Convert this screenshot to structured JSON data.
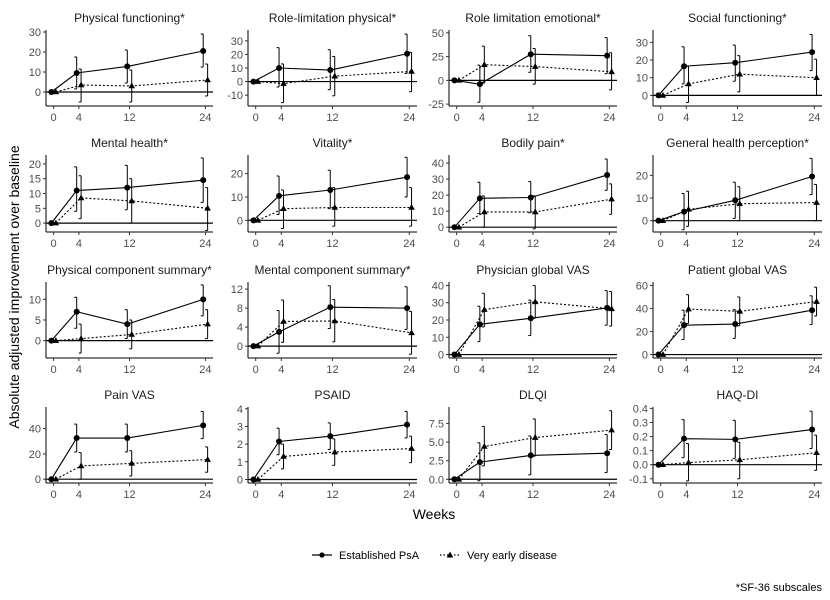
{
  "chart_data": {
    "type": "line",
    "subtype": "faceted-line-with-errorbars",
    "xlabel": "Weeks",
    "ylabel": "Absolute adjusted improvement over baseline",
    "x": [
      0,
      4,
      12,
      24
    ],
    "x_ticks": [
      "0",
      "4",
      "12",
      "24"
    ],
    "legend": {
      "placement": "bottom",
      "entries": [
        {
          "name": "Established PsA",
          "line": "solid",
          "marker": "circle"
        },
        {
          "name": "Very early disease",
          "line": "dotted",
          "marker": "triangle"
        }
      ]
    },
    "footnote": "*SF-36 subscales",
    "grid": false,
    "reference_line": 0,
    "panels": [
      {
        "title": "Physical functioning*",
        "ylim": [
          -7,
          31
        ],
        "yticks": [
          0,
          10,
          20,
          30
        ],
        "series": [
          {
            "name": "Established PsA",
            "values": [
              0,
              9.5,
              12.8,
              20.5
            ],
            "lower": [
              0,
              1.5,
              4.5,
              12.5
            ],
            "upper": [
              0,
              17.5,
              21.0,
              29.0
            ]
          },
          {
            "name": "Very early disease",
            "values": [
              0,
              3.5,
              3.0,
              6.0
            ],
            "lower": [
              0,
              -5.0,
              -5.0,
              -2.0
            ],
            "upper": [
              0,
              11.5,
              11.0,
              14.0
            ]
          }
        ]
      },
      {
        "title": "Role-limitation physical*",
        "ylim": [
          -18,
          38
        ],
        "yticks": [
          -10,
          0,
          10,
          20,
          30
        ],
        "series": [
          {
            "name": "Established PsA",
            "values": [
              0,
              10.0,
              8.5,
              20.5
            ],
            "lower": [
              0,
              -4.0,
              -6.0,
              6.0
            ],
            "upper": [
              0,
              25.0,
              23.5,
              35.0
            ]
          },
          {
            "name": "Very early disease",
            "values": [
              0,
              -1.5,
              4.0,
              7.5
            ],
            "lower": [
              0,
              -15.5,
              -10.5,
              -7.5
            ],
            "upper": [
              0,
              13.0,
              18.5,
              21.5
            ]
          }
        ]
      },
      {
        "title": "Role limitation emotional*",
        "ylim": [
          -27,
          53
        ],
        "yticks": [
          -25,
          0,
          25,
          50
        ],
        "series": [
          {
            "name": "Established PsA",
            "values": [
              0,
              -4.0,
              27.5,
              26.0
            ],
            "lower": [
              0,
              -23.0,
              8.5,
              7.0
            ],
            "upper": [
              0,
              16.0,
              47.0,
              45.0
            ]
          },
          {
            "name": "Very early disease",
            "values": [
              0,
              16.5,
              14.5,
              9.0
            ],
            "lower": [
              0,
              -3.0,
              -4.0,
              -10.0
            ],
            "upper": [
              0,
              36.0,
              33.5,
              29.0
            ]
          }
        ]
      },
      {
        "title": "Social functioning*",
        "ylim": [
          -6,
          37
        ],
        "yticks": [
          0,
          10,
          20,
          30
        ],
        "series": [
          {
            "name": "Established PsA",
            "values": [
              0,
              16.5,
              18.5,
              24.5
            ],
            "lower": [
              0,
              6.5,
              8.0,
              14.0
            ],
            "upper": [
              0,
              27.5,
              28.5,
              34.5
            ]
          },
          {
            "name": "Very early disease",
            "values": [
              0,
              6.5,
              12.0,
              10.0
            ],
            "lower": [
              0,
              -4.0,
              2.0,
              0.0
            ],
            "upper": [
              0,
              16.5,
              22.5,
              20.5
            ]
          }
        ]
      },
      {
        "title": "Mental health*",
        "ylim": [
          -3,
          23
        ],
        "yticks": [
          0,
          5,
          10,
          15,
          20
        ],
        "series": [
          {
            "name": "Established PsA",
            "values": [
              0,
              11.0,
              12.0,
              14.5
            ],
            "lower": [
              0,
              4.0,
              4.5,
              7.0
            ],
            "upper": [
              0,
              19.0,
              19.5,
              22.0
            ]
          },
          {
            "name": "Very early disease",
            "values": [
              0,
              8.5,
              7.5,
              5.0
            ],
            "lower": [
              0,
              1.5,
              0.0,
              -2.5
            ],
            "upper": [
              0,
              16.0,
              15.0,
              12.0
            ]
          }
        ]
      },
      {
        "title": "Vitality*",
        "ylim": [
          -5,
          28
        ],
        "yticks": [
          0,
          10,
          20
        ],
        "series": [
          {
            "name": "Established PsA",
            "values": [
              0,
              10.5,
              13.0,
              18.5
            ],
            "lower": [
              0,
              2.5,
              5.0,
              10.0
            ],
            "upper": [
              0,
              19.0,
              21.5,
              27.0
            ]
          },
          {
            "name": "Very early disease",
            "values": [
              0,
              5.0,
              5.5,
              5.5
            ],
            "lower": [
              0,
              -3.5,
              -2.5,
              -2.5
            ],
            "upper": [
              0,
              13.0,
              14.0,
              14.0
            ]
          }
        ]
      },
      {
        "title": "Bodily pain*",
        "ylim": [
          -3,
          45
        ],
        "yticks": [
          0,
          10,
          20,
          30,
          40
        ],
        "series": [
          {
            "name": "Established PsA",
            "values": [
              0,
              18.0,
              18.5,
              32.5
            ],
            "lower": [
              0,
              8.5,
              9.0,
              23.0
            ],
            "upper": [
              0,
              28.0,
              28.5,
              42.5
            ]
          },
          {
            "name": "Very early disease",
            "values": [
              0,
              9.5,
              9.5,
              17.5
            ],
            "lower": [
              0,
              0.0,
              -1.0,
              8.0
            ],
            "upper": [
              0,
              19.5,
              19.5,
              27.0
            ]
          }
        ]
      },
      {
        "title": "General health perception*",
        "ylim": [
          -5,
          29
        ],
        "yticks": [
          0,
          10,
          20
        ],
        "series": [
          {
            "name": "Established PsA",
            "values": [
              0,
              4.0,
              9.0,
              19.5
            ],
            "lower": [
              0,
              -4.0,
              1.0,
              11.5
            ],
            "upper": [
              0,
              12.0,
              17.0,
              27.5
            ]
          },
          {
            "name": "Very early disease",
            "values": [
              0,
              5.0,
              7.5,
              8.0
            ],
            "lower": [
              0,
              -2.5,
              0.0,
              0.0
            ],
            "upper": [
              0,
              13.0,
              15.0,
              16.0
            ]
          }
        ]
      },
      {
        "title": "Physical component summary*",
        "ylim": [
          -4.2,
          14.2
        ],
        "yticks": [
          0,
          5,
          10
        ],
        "series": [
          {
            "name": "Established PsA",
            "values": [
              0,
              7.0,
              4.0,
              10.0
            ],
            "lower": [
              0,
              3.0,
              0.5,
              6.0
            ],
            "upper": [
              0,
              10.5,
              7.5,
              13.5
            ]
          },
          {
            "name": "Very early disease",
            "values": [
              0,
              0.5,
              1.5,
              4.0
            ],
            "lower": [
              0,
              -3.0,
              -2.0,
              0.5
            ],
            "upper": [
              0,
              4.0,
              5.0,
              7.5
            ]
          }
        ]
      },
      {
        "title": "Mental component summary*",
        "ylim": [
          -2.5,
          13.5
        ],
        "yticks": [
          0,
          4,
          8,
          12
        ],
        "series": [
          {
            "name": "Established PsA",
            "values": [
              0,
              3.0,
              8.2,
              8.0
            ],
            "lower": [
              0,
              -1.5,
              3.7,
              3.5
            ],
            "upper": [
              0,
              7.5,
              12.7,
              12.5
            ]
          },
          {
            "name": "Very early disease",
            "values": [
              0,
              5.2,
              5.3,
              2.8
            ],
            "lower": [
              0,
              0.8,
              0.9,
              -1.7
            ],
            "upper": [
              0,
              9.7,
              9.8,
              7.3
            ]
          }
        ]
      },
      {
        "title": "Physician global VAS",
        "ylim": [
          -2,
          42
        ],
        "yticks": [
          0,
          10,
          20,
          30,
          40
        ],
        "series": [
          {
            "name": "Established PsA",
            "values": [
              0,
              17.5,
              21.0,
              27.0
            ],
            "lower": [
              0,
              7.5,
              11.0,
              17.0
            ],
            "upper": [
              0,
              28.0,
              31.5,
              37.0
            ]
          },
          {
            "name": "Very early disease",
            "values": [
              0,
              26.0,
              30.5,
              26.5
            ],
            "lower": [
              0,
              16.0,
              21.0,
              16.5
            ],
            "upper": [
              0,
              35.5,
              40.0,
              36.5
            ]
          }
        ]
      },
      {
        "title": "Patient global VAS",
        "ylim": [
          -3,
          63
        ],
        "yticks": [
          0,
          20,
          40,
          60
        ],
        "series": [
          {
            "name": "Established PsA",
            "values": [
              0,
              25.5,
              26.5,
              38.5
            ],
            "lower": [
              0,
              13.0,
              14.0,
              26.0
            ],
            "upper": [
              0,
              38.5,
              39.0,
              51.0
            ]
          },
          {
            "name": "Very early disease",
            "values": [
              0,
              39.5,
              37.5,
              46.0
            ],
            "lower": [
              0,
              27.0,
              25.0,
              33.5
            ],
            "upper": [
              0,
              52.0,
              50.0,
              58.5
            ]
          }
        ]
      },
      {
        "title": "Pain VAS",
        "ylim": [
          -3,
          57
        ],
        "yticks": [
          0,
          20,
          40
        ],
        "series": [
          {
            "name": "Established PsA",
            "values": [
              0,
              32.5,
              32.5,
              42.5
            ],
            "lower": [
              0,
              21.5,
              21.5,
              32.0
            ],
            "upper": [
              0,
              43.5,
              43.5,
              53.5
            ]
          },
          {
            "name": "Very early disease",
            "values": [
              0,
              10.5,
              12.5,
              15.5
            ],
            "lower": [
              0,
              0.0,
              2.5,
              5.5
            ],
            "upper": [
              0,
              21.0,
              22.5,
              25.5
            ]
          }
        ]
      },
      {
        "title": "PSAID",
        "ylim": [
          -0.2,
          4.1
        ],
        "yticks": [
          0,
          1,
          2,
          3,
          4
        ],
        "series": [
          {
            "name": "Established PsA",
            "values": [
              0,
              2.15,
              2.45,
              3.1
            ],
            "lower": [
              0,
              1.4,
              1.7,
              2.35
            ],
            "upper": [
              0,
              2.9,
              3.2,
              3.85
            ]
          },
          {
            "name": "Very early disease",
            "values": [
              0,
              1.3,
              1.55,
              1.75
            ],
            "lower": [
              0,
              0.6,
              0.8,
              0.95
            ],
            "upper": [
              0,
              2.0,
              2.3,
              2.45
            ]
          }
        ]
      },
      {
        "title": "DLQI",
        "ylim": [
          -0.5,
          9.7
        ],
        "yticks": [
          0.0,
          2.5,
          5.0,
          7.5
        ],
        "ytick_labels": [
          "0.0",
          "2.5",
          "5.0",
          "7.5"
        ],
        "series": [
          {
            "name": "Established PsA",
            "values": [
              0,
              2.3,
              3.2,
              3.5
            ],
            "lower": [
              0,
              -0.2,
              0.6,
              0.9
            ],
            "upper": [
              0,
              4.9,
              5.8,
              6.0
            ]
          },
          {
            "name": "Very early disease",
            "values": [
              0,
              4.4,
              5.6,
              6.6
            ],
            "lower": [
              0,
              1.8,
              3.1,
              4.0
            ],
            "upper": [
              0,
              7.1,
              8.1,
              9.2
            ]
          }
        ]
      },
      {
        "title": "HAQ-DI",
        "ylim": [
          -0.13,
          0.41
        ],
        "yticks": [
          -0.1,
          0.0,
          0.1,
          0.2,
          0.3,
          0.4
        ],
        "ytick_labels": [
          "-0.1",
          "0.0",
          "0.1",
          "0.2",
          "0.3",
          "0.4"
        ],
        "series": [
          {
            "name": "Established PsA",
            "values": [
              0,
              0.185,
              0.18,
              0.25
            ],
            "lower": [
              0,
              0.05,
              0.045,
              0.115
            ],
            "upper": [
              0,
              0.32,
              0.315,
              0.38
            ]
          },
          {
            "name": "Very early disease",
            "values": [
              0,
              0.015,
              0.035,
              0.085
            ],
            "lower": [
              0,
              -0.115,
              -0.1,
              -0.04
            ],
            "upper": [
              0,
              0.15,
              0.16,
              0.21
            ]
          }
        ]
      }
    ]
  }
}
